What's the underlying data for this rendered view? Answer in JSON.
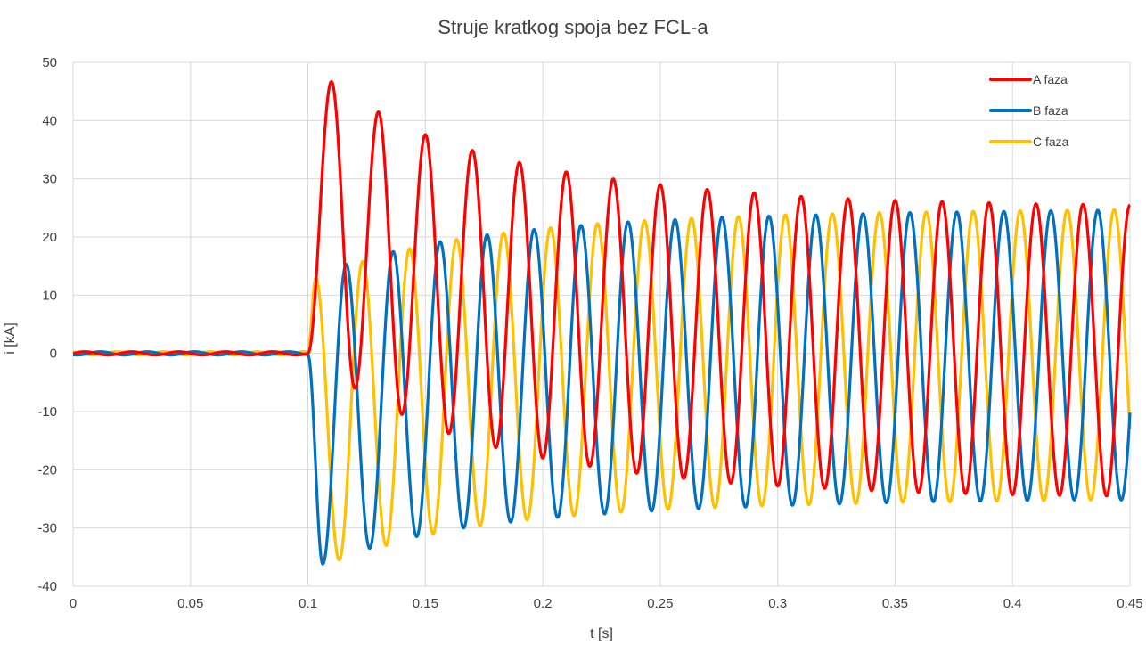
{
  "chart_data": {
    "type": "line",
    "title": "Struje kratkog spoja bez FCL-a",
    "xlabel": "t [s]",
    "ylabel": "i [kA]",
    "xlim": [
      0,
      0.45
    ],
    "ylim": [
      -40,
      50
    ],
    "x_ticks": [
      "0",
      "0.05",
      "0.1",
      "0.15",
      "0.2",
      "0.25",
      "0.3",
      "0.35",
      "0.4",
      "0.45"
    ],
    "y_ticks": [
      "50",
      "40",
      "30",
      "20",
      "10",
      "0",
      "-10",
      "-20",
      "-30",
      "-40"
    ],
    "grid": "on",
    "legend_position": "top-right",
    "fault_time_s": 0.1,
    "frequency_hz": 50,
    "series": [
      {
        "name": "A faza",
        "color": "#ff0000",
        "pre_fault_amplitude_kA": 0.3,
        "phase_deg": 0,
        "peaks": [
          {
            "t": 0.11,
            "i": 46.7
          },
          {
            "t": 0.13,
            "i": 41.5
          },
          {
            "t": 0.15,
            "i": 37.6
          },
          {
            "t": 0.17,
            "i": 34.9
          },
          {
            "t": 0.19,
            "i": 32.8
          },
          {
            "t": 0.21,
            "i": 31.2
          },
          {
            "t": 0.23,
            "i": 30.0
          },
          {
            "t": 0.25,
            "i": 29.0
          },
          {
            "t": 0.27,
            "i": 28.2
          },
          {
            "t": 0.29,
            "i": 27.6
          },
          {
            "t": 0.31,
            "i": 27.0
          },
          {
            "t": 0.33,
            "i": 26.6
          },
          {
            "t": 0.35,
            "i": 26.3
          },
          {
            "t": 0.37,
            "i": 26.1
          },
          {
            "t": 0.39,
            "i": 25.9
          },
          {
            "t": 0.41,
            "i": 25.7
          },
          {
            "t": 0.43,
            "i": 25.6
          },
          {
            "t": 0.45,
            "i": 25.5
          }
        ],
        "troughs": [
          {
            "t": 0.12,
            "i": -6.0
          },
          {
            "t": 0.14,
            "i": -10.5
          },
          {
            "t": 0.16,
            "i": -13.8
          },
          {
            "t": 0.18,
            "i": -16.2
          },
          {
            "t": 0.2,
            "i": -18.0
          },
          {
            "t": 0.22,
            "i": -19.4
          },
          {
            "t": 0.24,
            "i": -20.6
          },
          {
            "t": 0.26,
            "i": -21.5
          },
          {
            "t": 0.28,
            "i": -22.3
          },
          {
            "t": 0.3,
            "i": -22.8
          },
          {
            "t": 0.32,
            "i": -23.2
          },
          {
            "t": 0.34,
            "i": -23.6
          },
          {
            "t": 0.36,
            "i": -23.9
          },
          {
            "t": 0.38,
            "i": -24.1
          },
          {
            "t": 0.4,
            "i": -24.3
          },
          {
            "t": 0.42,
            "i": -24.4
          },
          {
            "t": 0.44,
            "i": -24.5
          }
        ]
      },
      {
        "name": "B faza",
        "color": "#0070c0",
        "pre_fault_amplitude_kA": 0.3,
        "phase_deg": -120,
        "peaks": [
          {
            "t": 0.1163,
            "i": 15.3
          },
          {
            "t": 0.1363,
            "i": 17.5
          },
          {
            "t": 0.1563,
            "i": 19.2
          },
          {
            "t": 0.1763,
            "i": 20.4
          },
          {
            "t": 0.1963,
            "i": 21.3
          },
          {
            "t": 0.2163,
            "i": 22.0
          },
          {
            "t": 0.2363,
            "i": 22.6
          },
          {
            "t": 0.2563,
            "i": 23.0
          },
          {
            "t": 0.2763,
            "i": 23.4
          },
          {
            "t": 0.2963,
            "i": 23.6
          },
          {
            "t": 0.3163,
            "i": 23.8
          },
          {
            "t": 0.3363,
            "i": 24.0
          },
          {
            "t": 0.3563,
            "i": 24.2
          },
          {
            "t": 0.3763,
            "i": 24.3
          },
          {
            "t": 0.3963,
            "i": 24.4
          },
          {
            "t": 0.4163,
            "i": 24.5
          },
          {
            "t": 0.4363,
            "i": 24.6
          }
        ],
        "troughs": [
          {
            "t": 0.1063,
            "i": -36.2
          },
          {
            "t": 0.1263,
            "i": -33.5
          },
          {
            "t": 0.1463,
            "i": -31.5
          },
          {
            "t": 0.1663,
            "i": -30.0
          },
          {
            "t": 0.1863,
            "i": -29.0
          },
          {
            "t": 0.2063,
            "i": -28.2
          },
          {
            "t": 0.2263,
            "i": -27.6
          },
          {
            "t": 0.2463,
            "i": -27.1
          },
          {
            "t": 0.2663,
            "i": -26.7
          },
          {
            "t": 0.2863,
            "i": -26.4
          },
          {
            "t": 0.3063,
            "i": -26.1
          },
          {
            "t": 0.3263,
            "i": -25.9
          },
          {
            "t": 0.3463,
            "i": -25.7
          },
          {
            "t": 0.3663,
            "i": -25.5
          },
          {
            "t": 0.3863,
            "i": -25.4
          },
          {
            "t": 0.4063,
            "i": -25.3
          },
          {
            "t": 0.4263,
            "i": -25.2
          },
          {
            "t": 0.4463,
            "i": -25.2
          }
        ]
      },
      {
        "name": "C faza",
        "color": "#ffc000",
        "pre_fault_amplitude_kA": 0.3,
        "phase_deg": 120,
        "peaks": [
          {
            "t": 0.1033,
            "i": 13.0
          },
          {
            "t": 0.1233,
            "i": 15.8
          },
          {
            "t": 0.1433,
            "i": 18.0
          },
          {
            "t": 0.1633,
            "i": 19.6
          },
          {
            "t": 0.1833,
            "i": 20.7
          },
          {
            "t": 0.2033,
            "i": 21.6
          },
          {
            "t": 0.2233,
            "i": 22.3
          },
          {
            "t": 0.2433,
            "i": 22.8
          },
          {
            "t": 0.2633,
            "i": 23.2
          },
          {
            "t": 0.2833,
            "i": 23.5
          },
          {
            "t": 0.3033,
            "i": 23.8
          },
          {
            "t": 0.3233,
            "i": 24.0
          },
          {
            "t": 0.3433,
            "i": 24.2
          },
          {
            "t": 0.3633,
            "i": 24.3
          },
          {
            "t": 0.3833,
            "i": 24.4
          },
          {
            "t": 0.4033,
            "i": 24.5
          },
          {
            "t": 0.4233,
            "i": 24.6
          },
          {
            "t": 0.4433,
            "i": 24.7
          }
        ],
        "troughs": [
          {
            "t": 0.1133,
            "i": -35.5
          },
          {
            "t": 0.1333,
            "i": -33.0
          },
          {
            "t": 0.1533,
            "i": -31.0
          },
          {
            "t": 0.1733,
            "i": -29.6
          },
          {
            "t": 0.1933,
            "i": -28.6
          },
          {
            "t": 0.2133,
            "i": -27.9
          },
          {
            "t": 0.2333,
            "i": -27.3
          },
          {
            "t": 0.2533,
            "i": -26.8
          },
          {
            "t": 0.2733,
            "i": -26.5
          },
          {
            "t": 0.2933,
            "i": -26.2
          },
          {
            "t": 0.3133,
            "i": -26.0
          },
          {
            "t": 0.3333,
            "i": -25.8
          },
          {
            "t": 0.3533,
            "i": -25.6
          },
          {
            "t": 0.3733,
            "i": -25.5
          },
          {
            "t": 0.3933,
            "i": -25.4
          },
          {
            "t": 0.4133,
            "i": -25.3
          },
          {
            "t": 0.4333,
            "i": -25.2
          }
        ]
      }
    ]
  }
}
